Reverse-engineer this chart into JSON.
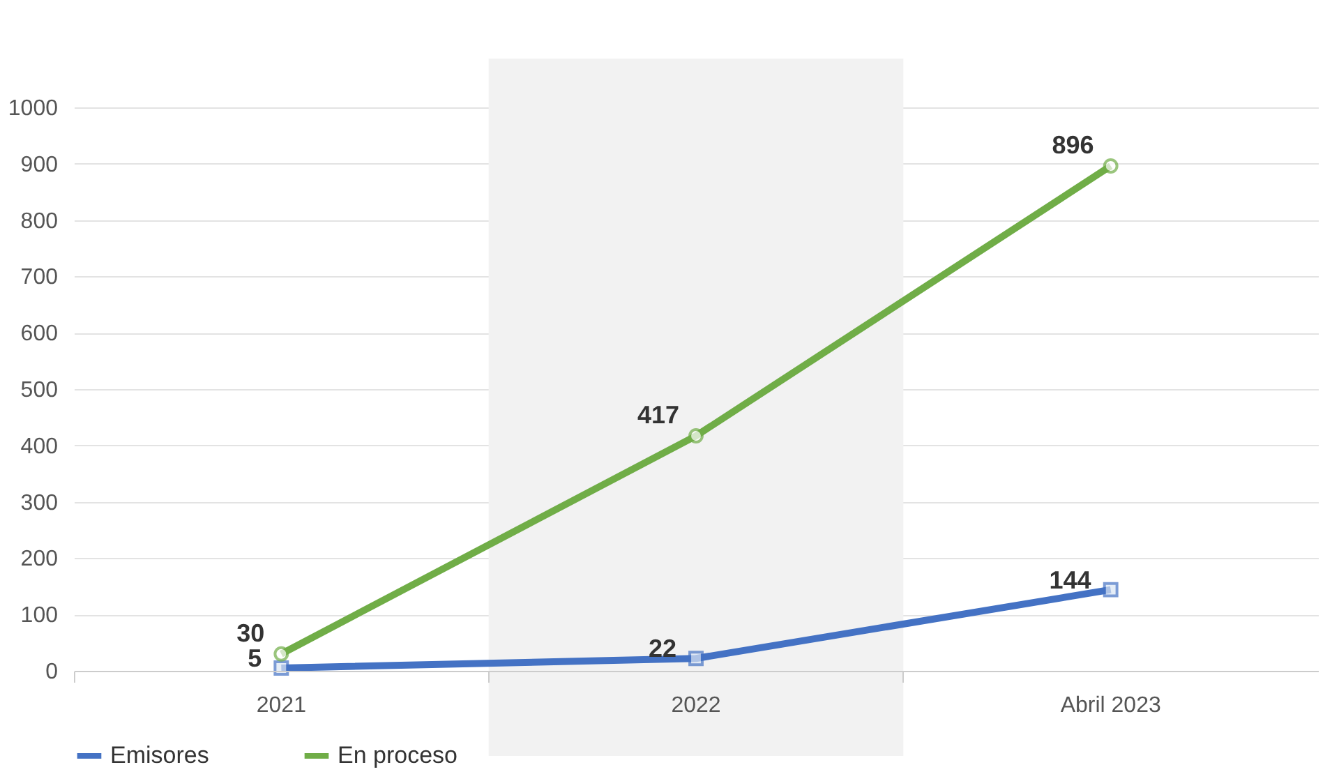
{
  "chart_data": {
    "type": "line",
    "categories": [
      "2021",
      "2022",
      "Abril 2023"
    ],
    "series": [
      {
        "name": "Emisores",
        "color": "#4472c4",
        "marker": "square",
        "values": [
          5,
          22,
          144
        ]
      },
      {
        "name": "En proceso",
        "color": "#70ad47",
        "marker": "circle",
        "values": [
          30,
          417,
          896
        ]
      }
    ],
    "ylim": [
      0,
      1000
    ],
    "yticks": [
      0,
      100,
      200,
      300,
      400,
      500,
      600,
      700,
      800,
      900,
      1000
    ],
    "grid": "y",
    "legend": "bottom",
    "data_labels": true,
    "bands": [
      {
        "axis": "x",
        "from": "2022",
        "to": "2022",
        "color": "#f2f2f2"
      }
    ]
  }
}
